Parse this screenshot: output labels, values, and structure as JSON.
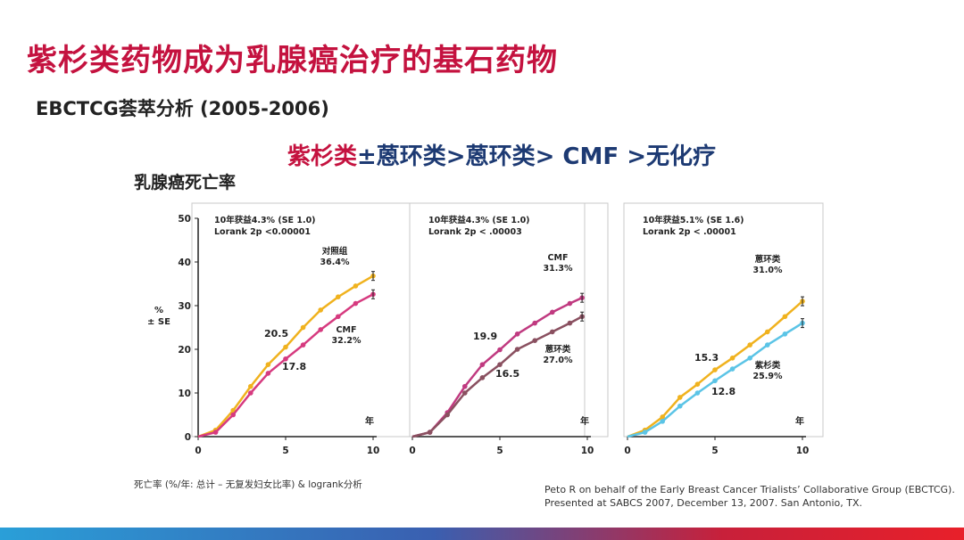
{
  "title": "紫杉类药物成为乳腺癌治疗的基石药物",
  "subtitle": "EBCTCG荟萃分析 (2005-2006)",
  "ranking": {
    "part1": "紫杉类",
    "part2": "±蒽环类>蒽环类> CMF >无化疗"
  },
  "main_ylabel": "乳腺癌死亡率",
  "footnote_left": "死亡率 (%/年: 总计 – 无复发妇女比率) & logrank分析",
  "footnote_right": [
    "Peto R on behalf of the Early Breast Cancer Trialists’ Collaborative Group (EBCTCG).",
    "Presented at SABCS 2007, December 13, 2007. San Antonio, TX."
  ],
  "colors": {
    "accent_red": "#c4123f",
    "navy": "#1d3a73"
  },
  "chart_data": [
    {
      "type": "line",
      "ylabel": "%\n± SE",
      "xlabel": "年",
      "xlim": [
        0,
        10
      ],
      "ylim": [
        0,
        50
      ],
      "xticks": [
        0,
        5,
        10
      ],
      "yticks": [
        0,
        10,
        20,
        30,
        40,
        50
      ],
      "annotation": [
        "10年获益4.3% (SE 1.0)",
        "Lorank 2p <0.00001"
      ],
      "series": [
        {
          "name": "对照组",
          "color": "#f0b21e",
          "end_label": "36.4%",
          "x": [
            0,
            1,
            2,
            3,
            4,
            5,
            6,
            7,
            8,
            9,
            10
          ],
          "y": [
            0,
            1.5,
            6,
            11.5,
            16.5,
            20.5,
            25,
            29,
            32,
            34.5,
            36.8
          ]
        },
        {
          "name": "CMF",
          "color": "#d63a7f",
          "end_label": "32.2%",
          "x": [
            0,
            1,
            2,
            3,
            4,
            5,
            6,
            7,
            8,
            9,
            10
          ],
          "y": [
            0,
            1,
            5,
            10,
            14.5,
            17.8,
            21,
            24.5,
            27.5,
            30.5,
            32.6
          ]
        }
      ],
      "value_labels": [
        "20.5",
        "17.8"
      ]
    },
    {
      "type": "line",
      "xlabel": "年",
      "xlim": [
        0,
        10
      ],
      "ylim": [
        0,
        50
      ],
      "xticks": [
        0,
        5,
        10
      ],
      "annotation": [
        "10年获益4.3% (SE 1.0)",
        "Lorank 2p < .00003"
      ],
      "series": [
        {
          "name": "CMF",
          "color": "#c03a80",
          "end_label": "31.3%",
          "x": [
            0,
            1,
            2,
            3,
            4,
            5,
            6,
            7,
            8,
            9,
            9.7
          ],
          "y": [
            0,
            1,
            5.5,
            11.5,
            16.5,
            19.9,
            23.5,
            26,
            28.5,
            30.5,
            31.8
          ]
        },
        {
          "name": "蒽环类",
          "color": "#8a5060",
          "end_label": "27.0%",
          "x": [
            0,
            1,
            2,
            3,
            4,
            5,
            6,
            7,
            8,
            9,
            9.7
          ],
          "y": [
            0,
            1,
            5,
            10,
            13.5,
            16.5,
            20,
            22,
            24,
            26,
            27.5
          ]
        }
      ],
      "value_labels": [
        "19.9",
        "16.5"
      ]
    },
    {
      "type": "line",
      "xlabel": "年",
      "xlim": [
        0,
        10
      ],
      "ylim": [
        0,
        50
      ],
      "xticks": [
        0,
        5,
        10
      ],
      "annotation": [
        "10年获益5.1% (SE 1.6)",
        "Lorank 2p < .00001"
      ],
      "series": [
        {
          "name": "蒽环类",
          "color": "#f0b21e",
          "end_label": "31.0%",
          "x": [
            0,
            1,
            2,
            3,
            4,
            5,
            6,
            7,
            8,
            9,
            10
          ],
          "y": [
            0,
            1.5,
            4.5,
            9,
            12,
            15.3,
            18,
            21,
            24,
            27.5,
            31
          ]
        },
        {
          "name": "紫杉类",
          "color": "#5bc4e6",
          "end_label": "25.9%",
          "x": [
            0,
            1,
            2,
            3,
            4,
            5,
            6,
            7,
            8,
            9,
            10
          ],
          "y": [
            0,
            1,
            3.5,
            7,
            10,
            12.8,
            15.5,
            18,
            21,
            23.5,
            26
          ]
        }
      ],
      "value_labels": [
        "15.3",
        "12.8"
      ]
    }
  ]
}
